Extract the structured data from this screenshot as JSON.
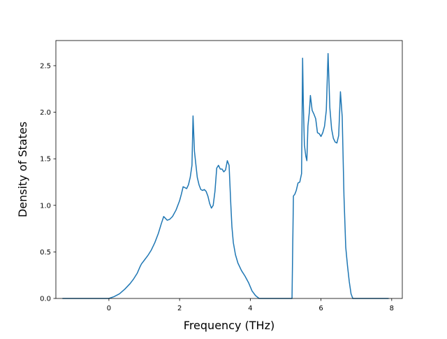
{
  "chart_data": {
    "type": "line",
    "title": "",
    "xlabel": "Frequency (THz)",
    "ylabel": "Density of States",
    "xlim": [
      -1.5,
      8.3
    ],
    "ylim": [
      0,
      2.77
    ],
    "xticks": [
      0,
      2,
      4,
      6,
      8
    ],
    "yticks": [
      0.0,
      0.5,
      1.0,
      1.5,
      2.0,
      2.5
    ],
    "ytick_labels": [
      "0.0",
      "0.5",
      "1.0",
      "1.5",
      "2.0",
      "2.5"
    ],
    "xtick_labels": [
      "0",
      "2",
      "4",
      "6",
      "8"
    ],
    "grid": false,
    "legend": "none",
    "line_color": "#1f77b4",
    "series": [
      {
        "x": [
          -1.3,
          -0.5,
          0.0,
          0.15,
          0.3,
          0.45,
          0.6,
          0.7,
          0.8,
          0.88,
          0.92,
          1.0,
          1.1,
          1.2,
          1.3,
          1.4,
          1.48,
          1.55,
          1.6,
          1.65,
          1.72,
          1.8,
          1.9,
          2.0,
          2.05,
          2.1,
          2.2,
          2.25,
          2.3,
          2.35,
          2.38,
          2.42,
          2.5,
          2.55,
          2.6,
          2.65,
          2.7,
          2.75,
          2.8,
          2.85,
          2.9,
          2.95,
          3.0,
          3.05,
          3.1,
          3.15,
          3.2,
          3.25,
          3.3,
          3.35,
          3.4,
          3.45,
          3.48,
          3.52,
          3.58,
          3.65,
          3.75,
          3.85,
          3.95,
          4.05,
          4.15,
          4.25,
          4.35,
          4.8,
          5.0,
          5.18,
          5.22,
          5.26,
          5.3,
          5.35,
          5.4,
          5.45,
          5.48,
          5.5,
          5.53,
          5.57,
          5.6,
          5.63,
          5.67,
          5.7,
          5.75,
          5.8,
          5.85,
          5.9,
          5.95,
          6.0,
          6.05,
          6.1,
          6.15,
          6.2,
          6.25,
          6.3,
          6.35,
          6.4,
          6.45,
          6.5,
          6.55,
          6.6,
          6.65,
          6.7,
          6.75,
          6.8,
          6.85,
          6.9,
          6.95,
          7.0,
          7.05,
          7.1,
          7.2,
          7.9
        ],
        "y": [
          0.0,
          0.0,
          0.0,
          0.02,
          0.05,
          0.1,
          0.16,
          0.21,
          0.27,
          0.34,
          0.37,
          0.41,
          0.46,
          0.52,
          0.6,
          0.7,
          0.8,
          0.88,
          0.86,
          0.84,
          0.85,
          0.88,
          0.95,
          1.05,
          1.12,
          1.2,
          1.18,
          1.22,
          1.3,
          1.43,
          1.96,
          1.58,
          1.3,
          1.22,
          1.17,
          1.16,
          1.17,
          1.15,
          1.1,
          1.02,
          0.97,
          1.0,
          1.15,
          1.4,
          1.43,
          1.39,
          1.39,
          1.36,
          1.38,
          1.48,
          1.43,
          1.0,
          0.77,
          0.6,
          0.47,
          0.38,
          0.3,
          0.24,
          0.17,
          0.08,
          0.03,
          0.0,
          0.0,
          0.0,
          0.0,
          0.0,
          1.1,
          1.12,
          1.16,
          1.24,
          1.25,
          1.34,
          2.58,
          2.1,
          1.65,
          1.53,
          1.48,
          1.85,
          2.0,
          2.18,
          2.02,
          1.98,
          1.93,
          1.78,
          1.77,
          1.74,
          1.78,
          1.85,
          2.02,
          2.63,
          2.05,
          1.82,
          1.72,
          1.68,
          1.67,
          1.75,
          2.22,
          1.95,
          1.1,
          0.55,
          0.35,
          0.18,
          0.05,
          0.0,
          0.0,
          0.0,
          0.0,
          0.0,
          0.0,
          0.0
        ]
      }
    ]
  }
}
